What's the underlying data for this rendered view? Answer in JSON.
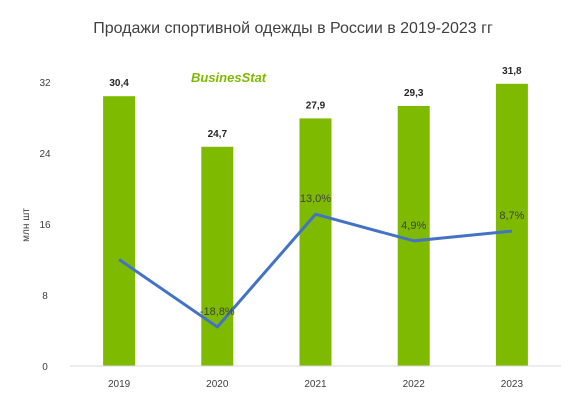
{
  "chart_data": {
    "type": "bar",
    "title": "Продажи спортивной одежды в России в 2019-2023 гг",
    "ylabel": "млн шт",
    "xlabel": "",
    "categories": [
      "2019",
      "2020",
      "2021",
      "2022",
      "2023"
    ],
    "ylim": [
      0,
      32
    ],
    "yticks": [
      0,
      8,
      16,
      24,
      32
    ],
    "grid": false,
    "series": [
      {
        "type": "bar",
        "values": [
          30.4,
          24.7,
          27.9,
          29.3,
          31.8
        ],
        "labels": [
          "30,4",
          "24,7",
          "27,9",
          "29,3",
          "31,8"
        ],
        "color": "#7ebb00"
      },
      {
        "type": "line",
        "values": [
          12.0,
          4.4,
          17.1,
          14.1,
          15.2
        ],
        "labels": [
          "",
          "-18,8%",
          "13,0%",
          "4,9%",
          "8,7%"
        ],
        "color": "#4472c4"
      }
    ]
  },
  "logo": {
    "text_main": "Busines",
    "text_accent": "Stat",
    "color": "#7ebb00"
  }
}
